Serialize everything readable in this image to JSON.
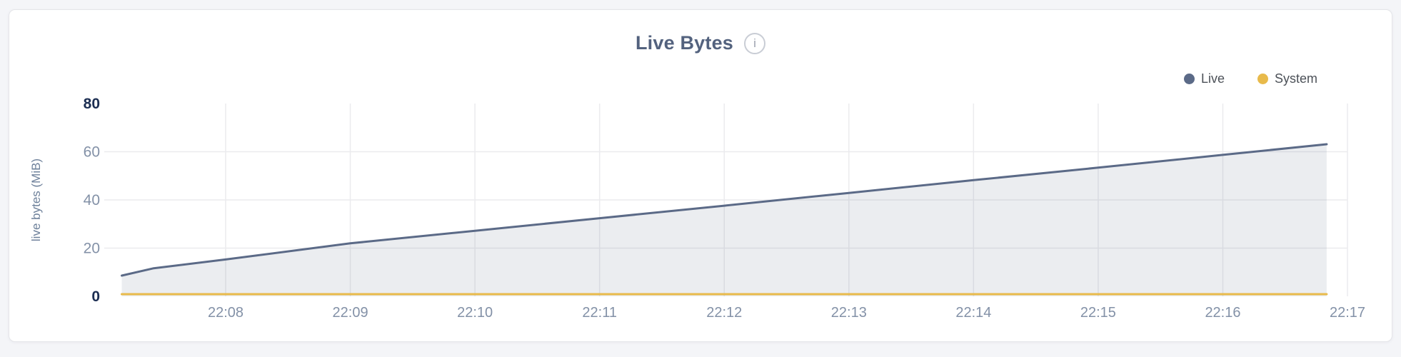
{
  "card": {
    "title": "Live Bytes",
    "info_icon": "i"
  },
  "legend": [
    {
      "label": "Live",
      "color": "#5b6a87"
    },
    {
      "label": "System",
      "color": "#e8ba4b"
    }
  ],
  "colors": {
    "live": "#5b6a87",
    "live_fill": "rgba(91,106,135,0.12)",
    "system": "#e8ba4b",
    "grid": "#ebebee",
    "tick_bold": "#1c2e52",
    "tick_light": "#8391a7",
    "title": "#53627e"
  },
  "chart_data": {
    "type": "area",
    "title": "Live Bytes",
    "xlabel": "",
    "ylabel": "live bytes (MiB)",
    "ylim": [
      0,
      80
    ],
    "grid": true,
    "legend_position": "top-right",
    "y_ticks": [
      {
        "v": 0,
        "emphasis": true
      },
      {
        "v": 20,
        "emphasis": false
      },
      {
        "v": 40,
        "emphasis": false
      },
      {
        "v": 60,
        "emphasis": false
      },
      {
        "v": 80,
        "emphasis": true
      }
    ],
    "x_ticks": [
      {
        "label": "22:08",
        "t": 480
      },
      {
        "label": "22:09",
        "t": 540
      },
      {
        "label": "22:10",
        "t": 600
      },
      {
        "label": "22:11",
        "t": 660
      },
      {
        "label": "22:12",
        "t": 720
      },
      {
        "label": "22:13",
        "t": 780
      },
      {
        "label": "22:14",
        "t": 840
      },
      {
        "label": "22:15",
        "t": 900
      },
      {
        "label": "22:16",
        "t": 960
      },
      {
        "label": "22:17",
        "t": 1020
      }
    ],
    "series": [
      {
        "name": "Live",
        "color": "#5b6a87",
        "fill": "rgba(91,106,135,0.12)",
        "points": [
          {
            "t": 430,
            "v": 8.6
          },
          {
            "t": 445,
            "v": 11.6
          },
          {
            "t": 480,
            "v": 15.3
          },
          {
            "t": 540,
            "v": 22.0
          },
          {
            "t": 600,
            "v": 27.2
          },
          {
            "t": 660,
            "v": 32.4
          },
          {
            "t": 720,
            "v": 37.6
          },
          {
            "t": 780,
            "v": 42.9
          },
          {
            "t": 840,
            "v": 48.2
          },
          {
            "t": 900,
            "v": 53.4
          },
          {
            "t": 960,
            "v": 58.7
          },
          {
            "t": 1010,
            "v": 63.1
          }
        ]
      },
      {
        "name": "System",
        "color": "#e8ba4b",
        "fill": "none",
        "points": [
          {
            "t": 430,
            "v": 0.9
          },
          {
            "t": 1010,
            "v": 0.9
          }
        ]
      }
    ]
  }
}
